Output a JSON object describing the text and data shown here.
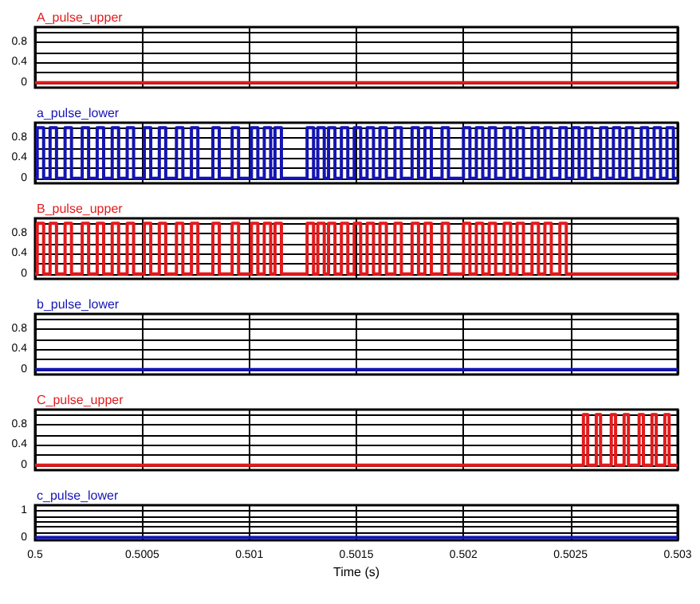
{
  "chart_data": [
    {
      "type": "step",
      "title": "A_pulse_upper",
      "color": "#e31a1c",
      "x": [
        0.5,
        0.503
      ],
      "values": [
        0,
        0
      ],
      "xlim": [
        0.5,
        0.503
      ],
      "xticks": [
        0.5,
        0.5005,
        0.501,
        0.5015,
        0.502,
        0.5025,
        0.503
      ],
      "ylim": [
        -0.1,
        1.1
      ],
      "yticks": [
        0,
        {
          "value": 0.2,
          "label": null
        },
        0.4,
        {
          "value": 0.6,
          "label": null
        },
        0.8,
        {
          "value": 1,
          "label": null
        }
      ],
      "grid": true,
      "tick_labels": "y"
    },
    {
      "type": "step",
      "title": "a_pulse_lower",
      "color": "#1414b4",
      "x": [
        0.5,
        0.50001,
        0.50004,
        0.50007,
        0.5001,
        0.50014,
        0.50017,
        0.50022,
        0.50025,
        0.50029,
        0.50032,
        0.50036,
        0.50039,
        0.50043,
        0.50046,
        0.50051,
        0.50054,
        0.50058,
        0.50061,
        0.50066,
        0.50069,
        0.50073,
        0.50076,
        0.50083,
        0.50086,
        0.50092,
        0.50095,
        0.50101,
        0.50104,
        0.50107,
        0.5011,
        0.50112,
        0.50115,
        0.50127,
        0.5013,
        0.50132,
        0.50135,
        0.50137,
        0.5014,
        0.50143,
        0.50146,
        0.50149,
        0.50152,
        0.50155,
        0.50158,
        0.50161,
        0.50164,
        0.50168,
        0.50171,
        0.50176,
        0.50179,
        0.50182,
        0.50185,
        0.5019,
        0.50193,
        0.502,
        0.50203,
        0.50206,
        0.50209,
        0.50212,
        0.50215,
        0.50219,
        0.50222,
        0.50225,
        0.50228,
        0.50232,
        0.50235,
        0.50238,
        0.50241,
        0.50245,
        0.50248,
        0.50251,
        0.50254,
        0.50257,
        0.5026,
        0.50264,
        0.50267,
        0.5027,
        0.50273,
        0.50276,
        0.50279,
        0.50283,
        0.50286,
        0.50289,
        0.50292,
        0.50295,
        0.50298,
        0.503
      ],
      "values": [
        0,
        1,
        0,
        1,
        0,
        1,
        0,
        1,
        0,
        1,
        0,
        1,
        0,
        1,
        0,
        1,
        0,
        1,
        0,
        1,
        0,
        1,
        0,
        1,
        0,
        1,
        0,
        1,
        0,
        1,
        0,
        1,
        0,
        1,
        0,
        1,
        0,
        1,
        0,
        1,
        0,
        1,
        0,
        1,
        0,
        1,
        0,
        1,
        0,
        1,
        0,
        1,
        0,
        1,
        0,
        1,
        0,
        1,
        0,
        1,
        0,
        1,
        0,
        1,
        0,
        1,
        0,
        1,
        0,
        1,
        0,
        1,
        0,
        1,
        0,
        1,
        0,
        1,
        0,
        1,
        0,
        1,
        0,
        1,
        0,
        1,
        0,
        0
      ],
      "xlim": [
        0.5,
        0.503
      ],
      "xticks": [
        0.5,
        0.5005,
        0.501,
        0.5015,
        0.502,
        0.5025,
        0.503
      ],
      "ylim": [
        -0.1,
        1.1
      ],
      "yticks": [
        0,
        {
          "value": 0.2,
          "label": null
        },
        0.4,
        {
          "value": 0.6,
          "label": null
        },
        0.8,
        {
          "value": 1,
          "label": null
        }
      ],
      "grid": true,
      "tick_labels": "y"
    },
    {
      "type": "step",
      "title": "B_pulse_upper",
      "color": "#e31a1c",
      "x": [
        0.5,
        0.50001,
        0.50004,
        0.50007,
        0.5001,
        0.50014,
        0.50017,
        0.50022,
        0.50025,
        0.50029,
        0.50032,
        0.50036,
        0.50039,
        0.50043,
        0.50046,
        0.50051,
        0.50054,
        0.50058,
        0.50061,
        0.50066,
        0.50069,
        0.50073,
        0.50076,
        0.50083,
        0.50086,
        0.50092,
        0.50095,
        0.50101,
        0.50104,
        0.50107,
        0.5011,
        0.50112,
        0.50115,
        0.50127,
        0.5013,
        0.50132,
        0.50135,
        0.50137,
        0.5014,
        0.50143,
        0.50146,
        0.50149,
        0.50152,
        0.50155,
        0.50158,
        0.50161,
        0.50164,
        0.50168,
        0.50171,
        0.50176,
        0.50179,
        0.50182,
        0.50185,
        0.5019,
        0.50193,
        0.502,
        0.50203,
        0.50206,
        0.50209,
        0.50212,
        0.50215,
        0.50219,
        0.50222,
        0.50225,
        0.50228,
        0.50232,
        0.50235,
        0.50238,
        0.50241,
        0.50245,
        0.50248,
        0.503
      ],
      "values": [
        0,
        1,
        0,
        1,
        0,
        1,
        0,
        1,
        0,
        1,
        0,
        1,
        0,
        1,
        0,
        1,
        0,
        1,
        0,
        1,
        0,
        1,
        0,
        1,
        0,
        1,
        0,
        1,
        0,
        1,
        0,
        1,
        0,
        1,
        0,
        1,
        0,
        1,
        0,
        1,
        0,
        1,
        0,
        1,
        0,
        1,
        0,
        1,
        0,
        1,
        0,
        1,
        0,
        1,
        0,
        1,
        0,
        1,
        0,
        1,
        0,
        1,
        0,
        1,
        0,
        1,
        0,
        1,
        0,
        1,
        0,
        0
      ],
      "xlim": [
        0.5,
        0.503
      ],
      "xticks": [
        0.5,
        0.5005,
        0.501,
        0.5015,
        0.502,
        0.5025,
        0.503
      ],
      "ylim": [
        -0.1,
        1.1
      ],
      "yticks": [
        0,
        {
          "value": 0.2,
          "label": null
        },
        0.4,
        {
          "value": 0.6,
          "label": null
        },
        0.8,
        {
          "value": 1,
          "label": null
        }
      ],
      "grid": true,
      "tick_labels": "y"
    },
    {
      "type": "step",
      "title": "b_pulse_lower",
      "color": "#1414b4",
      "x": [
        0.5,
        0.503
      ],
      "values": [
        0,
        0
      ],
      "xlim": [
        0.5,
        0.503
      ],
      "xticks": [
        0.5,
        0.5005,
        0.501,
        0.5015,
        0.502,
        0.5025,
        0.503
      ],
      "ylim": [
        -0.1,
        1.1
      ],
      "yticks": [
        0,
        {
          "value": 0.2,
          "label": null
        },
        0.4,
        {
          "value": 0.6,
          "label": null
        },
        0.8,
        {
          "value": 1,
          "label": null
        }
      ],
      "grid": true,
      "tick_labels": "y"
    },
    {
      "type": "step",
      "title": "C_pulse_upper",
      "color": "#e31a1c",
      "x": [
        0.5,
        0.50256,
        0.50258,
        0.50262,
        0.50264,
        0.50269,
        0.50271,
        0.50275,
        0.50277,
        0.50282,
        0.50284,
        0.50288,
        0.5029,
        0.50294,
        0.50296,
        0.503
      ],
      "values": [
        0,
        1,
        0,
        1,
        0,
        1,
        0,
        1,
        0,
        1,
        0,
        1,
        0,
        1,
        0,
        0
      ],
      "xlim": [
        0.5,
        0.503
      ],
      "xticks": [
        0.5,
        0.5005,
        0.501,
        0.5015,
        0.502,
        0.5025,
        0.503
      ],
      "ylim": [
        -0.1,
        1.1
      ],
      "yticks": [
        0,
        {
          "value": 0.2,
          "label": null
        },
        0.4,
        {
          "value": 0.6,
          "label": null
        },
        0.8,
        {
          "value": 1,
          "label": null
        }
      ],
      "grid": true,
      "tick_labels": "y"
    },
    {
      "type": "step",
      "title": "c_pulse_lower",
      "color": "#1414b4",
      "x": [
        0.5,
        0.503
      ],
      "values": [
        0,
        0
      ],
      "xlim": [
        0.5,
        0.503
      ],
      "xticks": [
        0.5,
        0.5005,
        0.501,
        0.5015,
        0.502,
        0.5025,
        0.503
      ],
      "ylim": [
        -0.1,
        1.2
      ],
      "yticks": [
        0,
        {
          "value": 0.2,
          "label": null
        },
        {
          "value": 0.4,
          "label": null
        },
        {
          "value": 0.6,
          "label": null
        },
        {
          "value": 0.8,
          "label": null
        },
        1
      ],
      "grid": true,
      "xlabel": "Time (s)"
    }
  ]
}
